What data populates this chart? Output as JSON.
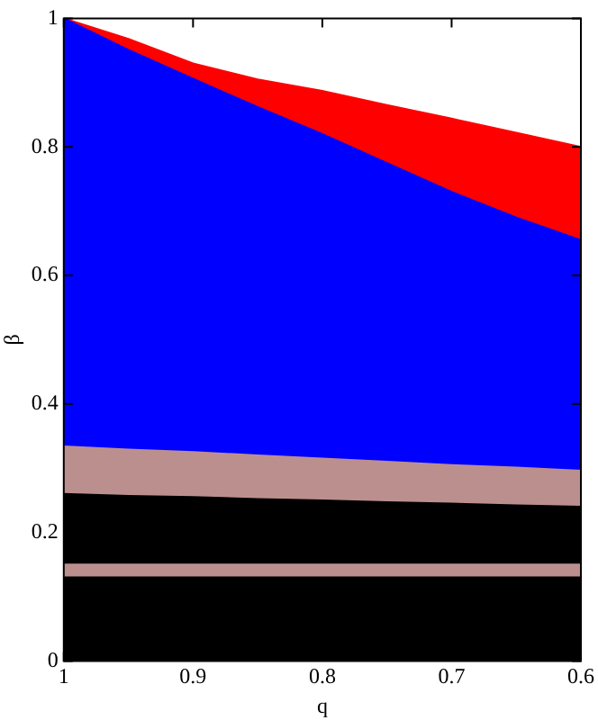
{
  "chart_data": {
    "type": "area",
    "xlabel": "q",
    "ylabel": "β",
    "x": [
      1,
      0.95,
      0.9,
      0.85,
      0.8,
      0.75,
      0.7,
      0.65,
      0.6
    ],
    "series": [
      {
        "color": "#000000",
        "values": [
          0.13,
          0.13,
          0.13,
          0.13,
          0.13,
          0.13,
          0.13,
          0.13,
          0.13
        ]
      },
      {
        "color": "#bc8f8f",
        "values": [
          0.15,
          0.15,
          0.15,
          0.15,
          0.15,
          0.15,
          0.15,
          0.15,
          0.15
        ]
      },
      {
        "color": "#000000",
        "values": [
          0.26,
          0.257,
          0.255,
          0.252,
          0.25,
          0.247,
          0.245,
          0.242,
          0.24
        ]
      },
      {
        "color": "#bc8f8f",
        "values": [
          0.334,
          0.329,
          0.325,
          0.32,
          0.315,
          0.31,
          0.305,
          0.301,
          0.296
        ]
      },
      {
        "color": "#0000ff",
        "values": [
          1,
          0.951,
          0.906,
          0.862,
          0.82,
          0.775,
          0.73,
          0.69,
          0.655
        ]
      },
      {
        "color": "#ff0000",
        "values": [
          1,
          0.968,
          0.93,
          0.905,
          0.887,
          0.865,
          0.844,
          0.822,
          0.8
        ]
      }
    ],
    "xlim": [
      1,
      0.6
    ],
    "xticks": [
      1,
      0.9,
      0.8,
      0.7,
      0.6
    ],
    "ylim": [
      0,
      1
    ],
    "yticks": [
      0,
      0.2,
      0.4,
      0.6,
      0.8,
      1
    ],
    "grid": false,
    "legend": false
  }
}
